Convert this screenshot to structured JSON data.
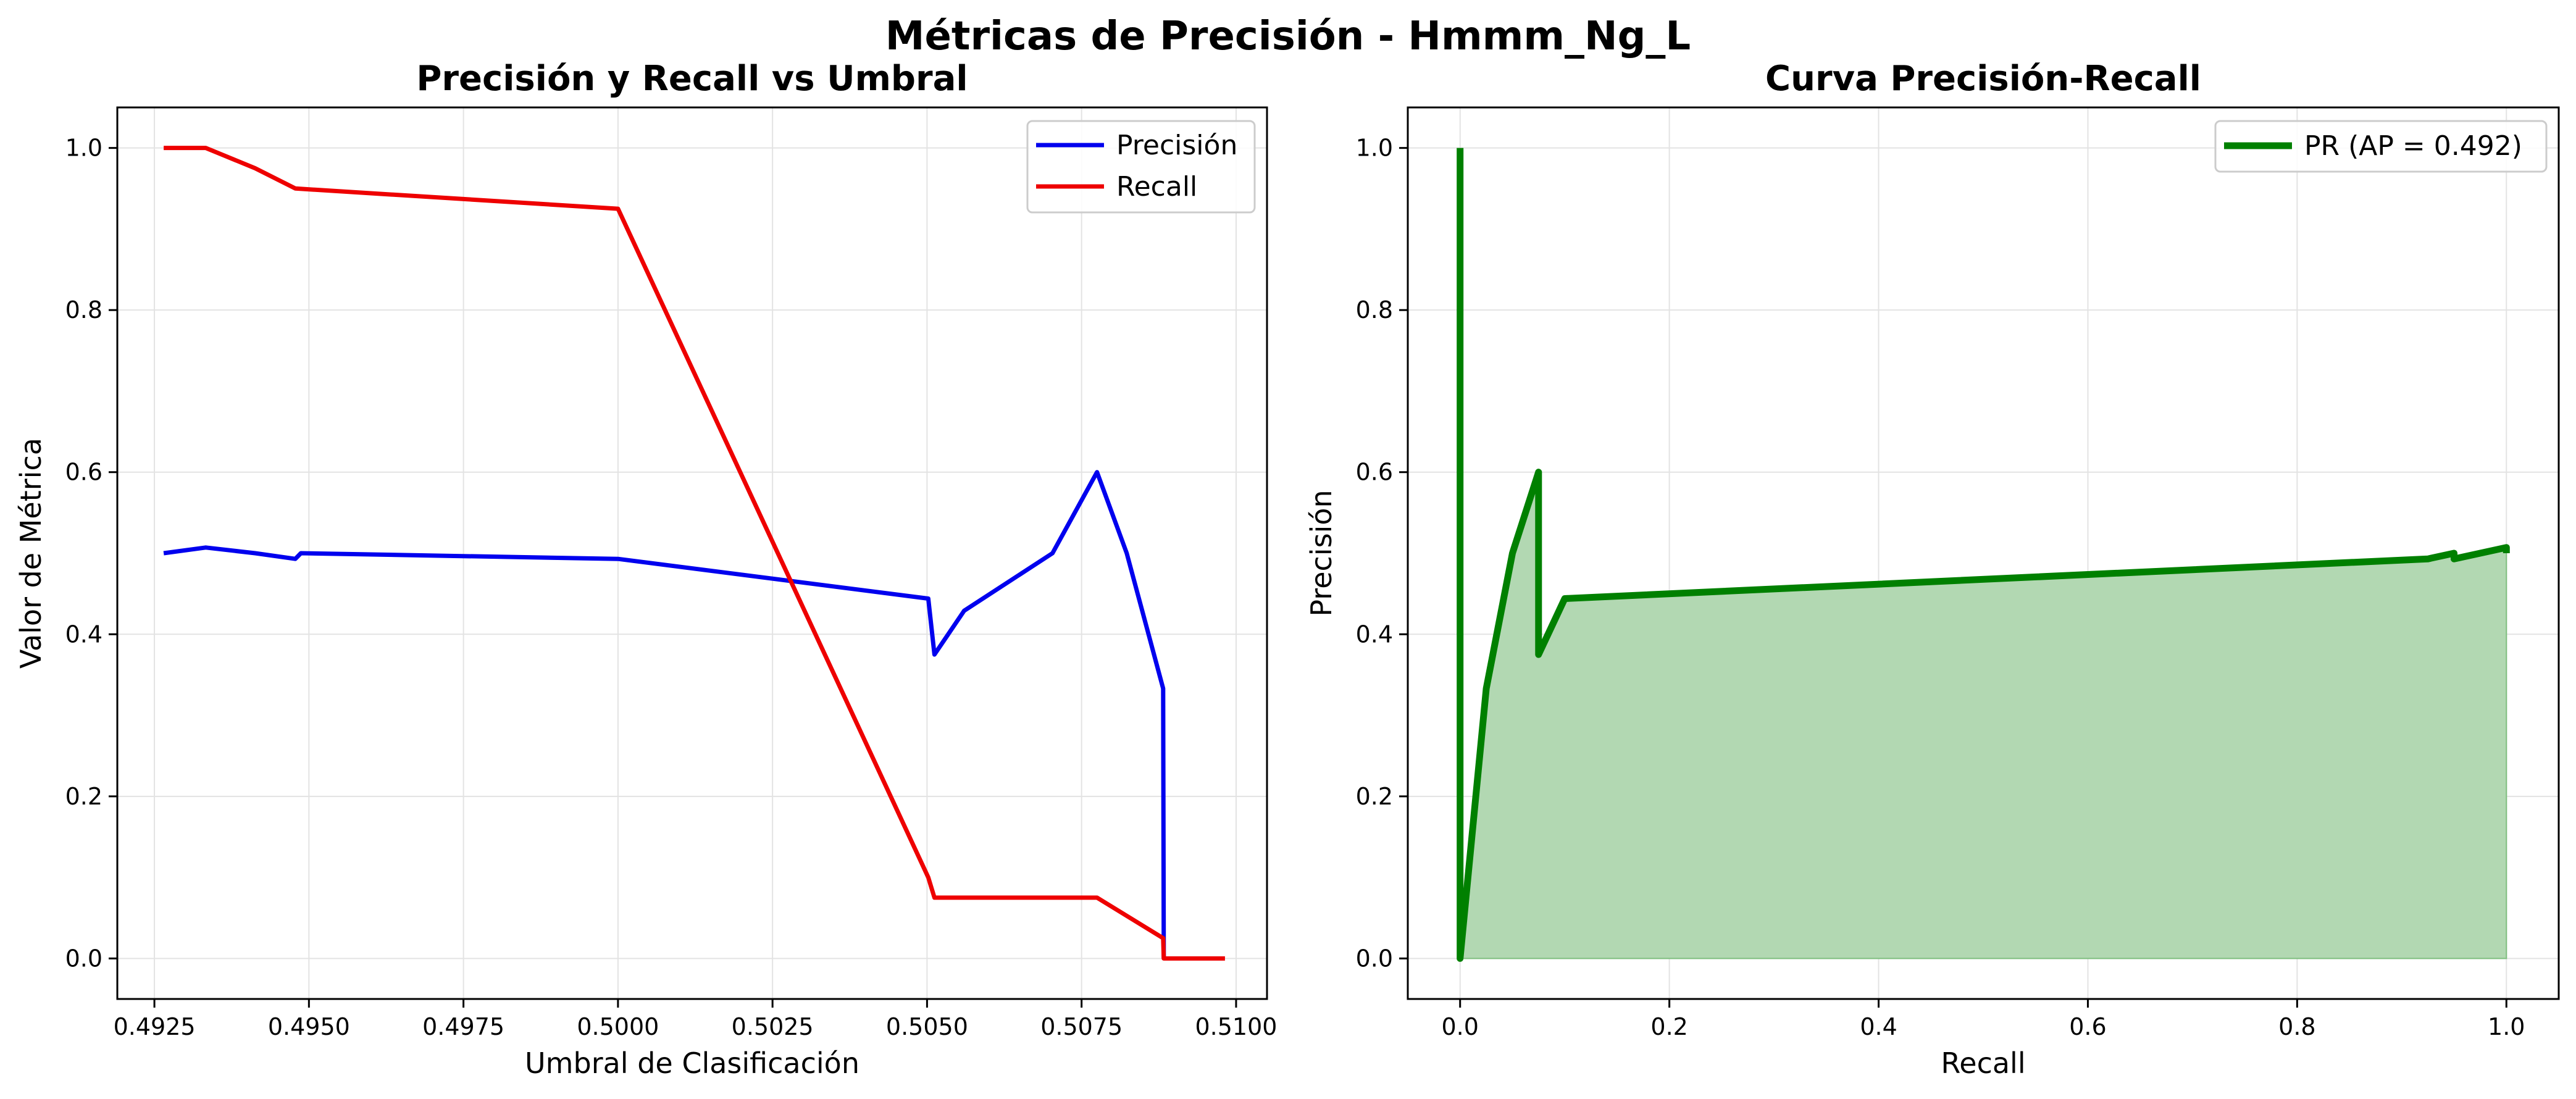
{
  "figure": {
    "title": "Métricas de Precisión - Hmmm_Ng_L"
  },
  "chart_data": [
    {
      "type": "line",
      "title": "Precisión y Recall vs Umbral",
      "xlabel": "Umbral de Clasificación",
      "ylabel": "Valor de Métrica",
      "xlim": [
        0.4919,
        0.5105
      ],
      "ylim": [
        -0.05,
        1.05
      ],
      "x_ticks": [
        0.4925,
        0.495,
        0.4975,
        0.5,
        0.5025,
        0.505,
        0.5075,
        0.51
      ],
      "x_tick_labels": [
        "0.4925",
        "0.4950",
        "0.4975",
        "0.5000",
        "0.5025",
        "0.5050",
        "0.5075",
        "0.5100"
      ],
      "y_ticks": [
        0.0,
        0.2,
        0.4,
        0.6,
        0.8,
        1.0
      ],
      "y_tick_labels": [
        "0.0",
        "0.2",
        "0.4",
        "0.6",
        "0.8",
        "1.0"
      ],
      "grid": true,
      "legend_position": "top-right",
      "series": [
        {
          "name": "Precisión",
          "color": "#0000ee",
          "x": [
            0.49265,
            0.49333,
            0.49413,
            0.49478,
            0.49487,
            0.5,
            0.50502,
            0.50512,
            0.5056,
            0.50703,
            0.50775,
            0.50823,
            0.50882,
            0.50883
          ],
          "y": [
            0.5,
            0.507,
            0.5,
            0.493,
            0.5,
            0.493,
            0.444,
            0.375,
            0.429,
            0.5,
            0.6,
            0.5,
            0.333,
            0.0
          ]
        },
        {
          "name": "Recall",
          "color": "#ee0000",
          "x": [
            0.49265,
            0.49333,
            0.49413,
            0.49478,
            0.5,
            0.50502,
            0.50512,
            0.50775,
            0.50882,
            0.50883,
            0.50982
          ],
          "y": [
            1.0,
            1.0,
            0.975,
            0.95,
            0.925,
            0.1,
            0.075,
            0.075,
            0.025,
            0.0,
            0.0
          ]
        }
      ]
    },
    {
      "type": "area",
      "title": "Curva Precisión-Recall",
      "xlabel": "Recall",
      "ylabel": "Precisión",
      "xlim": [
        -0.05,
        1.05
      ],
      "ylim": [
        -0.05,
        1.05
      ],
      "x_ticks": [
        0.0,
        0.2,
        0.4,
        0.6,
        0.8,
        1.0
      ],
      "x_tick_labels": [
        "0.0",
        "0.2",
        "0.4",
        "0.6",
        "0.8",
        "1.0"
      ],
      "y_ticks": [
        0.0,
        0.2,
        0.4,
        0.6,
        0.8,
        1.0
      ],
      "y_tick_labels": [
        "0.0",
        "0.2",
        "0.4",
        "0.6",
        "0.8",
        "1.0"
      ],
      "grid": true,
      "legend_position": "top-right",
      "series": [
        {
          "name": "PR (AP = 0.492)",
          "color": "#008000",
          "fill_color": "#b2d8b2",
          "x": [
            0.0,
            0.0,
            0.0,
            0.025,
            0.05,
            0.075,
            0.075,
            0.1,
            0.925,
            0.95,
            0.95,
            0.975,
            1.0,
            1.0
          ],
          "y": [
            1.0,
            0.0,
            0.0,
            0.333,
            0.5,
            0.6,
            0.375,
            0.444,
            0.493,
            0.5,
            0.493,
            0.5,
            0.507,
            0.5
          ]
        }
      ]
    }
  ]
}
